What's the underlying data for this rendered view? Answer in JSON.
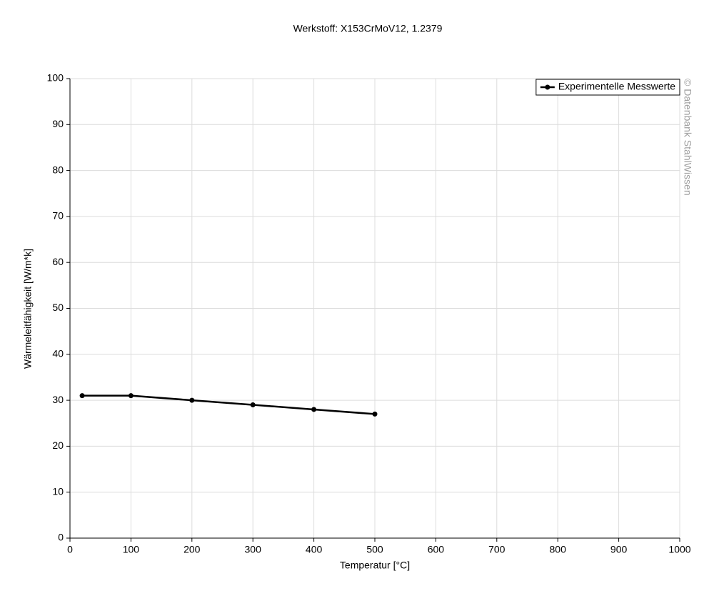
{
  "chart_data": {
    "type": "line",
    "title": "Werkstoff: X153CrMoV12, 1.2379",
    "x_label": "Temperatur [°C]",
    "y_label": "Wärmeleitfähigkeit [W/m*k]",
    "watermark": "© Datenbank StahlWissen",
    "x": [
      20,
      100,
      200,
      300,
      400,
      500
    ],
    "series": [
      {
        "name": "Experimentelle Messwerte",
        "color": "#000000",
        "values": [
          31,
          31,
          30,
          29,
          28,
          27
        ]
      }
    ],
    "xlim": [
      0,
      1000
    ],
    "xticks": [
      0,
      100,
      200,
      300,
      400,
      500,
      600,
      700,
      800,
      900,
      1000
    ],
    "ylim": [
      0,
      100
    ],
    "yticks": [
      0,
      10,
      20,
      30,
      40,
      50,
      60,
      70,
      80,
      90,
      100
    ],
    "grid": true,
    "legend": "top-right"
  }
}
